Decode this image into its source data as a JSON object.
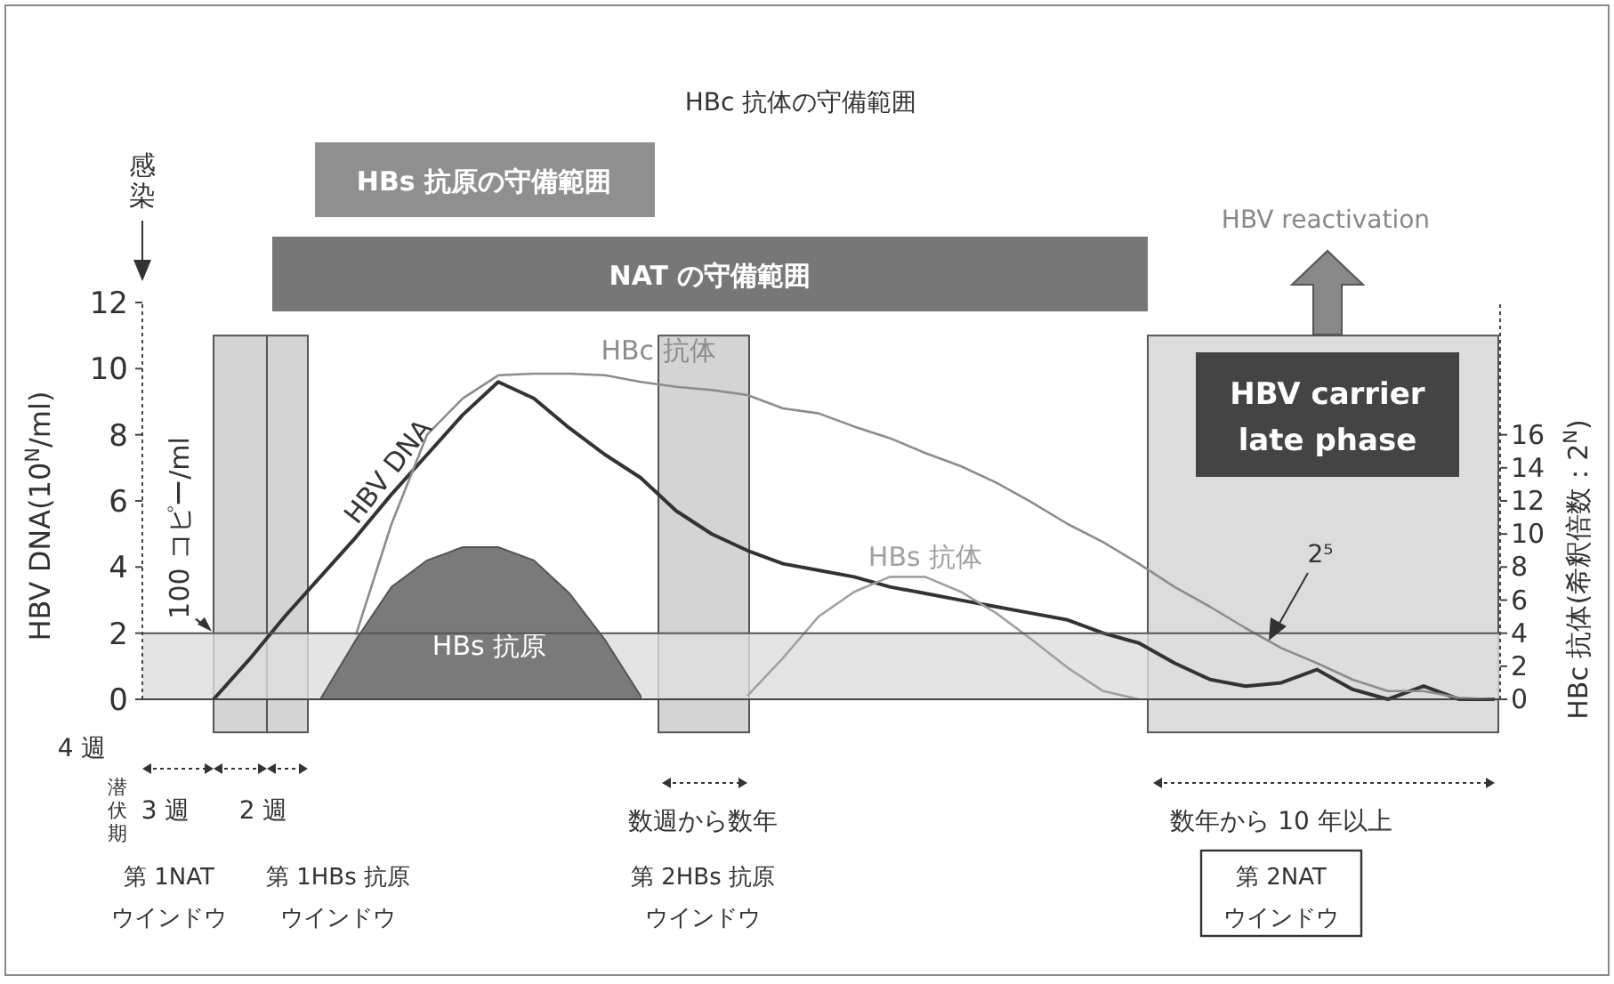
{
  "chart_data": {
    "type": "line",
    "ylabel": "HBV DNA(10$^{N}$/ml)",
    "y2label": "HBc 抗体(希釈倍数：2$^{N}$)",
    "categories": [
      null,
      null,
      null,
      null,
      null,
      null,
      null,
      null,
      null,
      null,
      null,
      null,
      null,
      null,
      null,
      null,
      null,
      null,
      null,
      null,
      null,
      null,
      null,
      null,
      null,
      null,
      null,
      null,
      null,
      null,
      null,
      null,
      null,
      null,
      null,
      null,
      null,
      null,
      null
    ],
    "ylim": [
      0,
      12
    ],
    "yticks": [
      0,
      2,
      4,
      6,
      8,
      10,
      12
    ],
    "y2lim": [
      0,
      24
    ],
    "y2ticks": [
      0,
      2,
      4,
      6,
      8,
      10,
      12,
      14,
      16
    ],
    "series": [
      {
        "name": "HBs 抗原",
        "type": "area",
        "color": "#7a7a7a",
        "values": [
          null,
          null,
          null,
          null,
          null,
          0,
          1.8,
          3.4,
          4.2,
          4.6,
          4.6,
          4.2,
          3.2,
          1.8,
          0.1,
          null,
          null,
          null,
          null,
          null,
          null,
          null,
          null,
          null,
          null,
          null,
          null,
          null,
          null,
          null,
          null,
          null,
          null,
          null,
          null,
          null,
          null,
          null,
          null
        ]
      },
      {
        "name": "HBV DNA",
        "color": "#333333",
        "values": [
          null,
          null,
          0,
          1.2,
          2.5,
          3.7,
          4.9,
          6.2,
          7.4,
          8.6,
          9.6,
          9.1,
          8.2,
          7.4,
          6.7,
          5.7,
          5.0,
          4.5,
          4.1,
          3.9,
          3.7,
          3.4,
          3.2,
          3.0,
          2.8,
          2.6,
          2.4,
          2.0,
          1.7,
          1.1,
          0.6,
          0.4,
          0.5,
          0.9,
          0.3,
          0,
          0.4,
          0,
          0
        ]
      },
      {
        "name": "HBc 抗体",
        "axis": "y2",
        "color": "#8c8c8c",
        "values": [
          null,
          null,
          null,
          null,
          null,
          null,
          3.9,
          10.6,
          16.0,
          18.2,
          19.6,
          19.7,
          19.7,
          19.6,
          19.2,
          18.9,
          18.7,
          18.4,
          17.6,
          17.3,
          16.5,
          15.8,
          14.9,
          14.1,
          13.1,
          11.9,
          10.6,
          9.5,
          8.2,
          6.8,
          5.6,
          4.3,
          3.1,
          2.2,
          1.2,
          0.5,
          0.5,
          0.1,
          0
        ]
      },
      {
        "name": "HBs 抗体",
        "axis": "y2",
        "color": "#a0a0a0",
        "values": [
          null,
          null,
          null,
          null,
          null,
          null,
          null,
          null,
          null,
          null,
          null,
          null,
          null,
          null,
          null,
          null,
          null,
          0.2,
          2.5,
          5.0,
          6.5,
          7.4,
          7.4,
          6.5,
          5.2,
          3.6,
          1.9,
          0.5,
          0,
          null,
          null,
          null,
          null,
          null,
          null,
          null,
          null,
          null,
          null
        ]
      }
    ],
    "ref_lines": [
      {
        "axis": "y",
        "value": 2,
        "label": "100 コピー/ml",
        "color": "#555555"
      }
    ],
    "bands": [
      {
        "axis": "y",
        "from": 0,
        "to": 2,
        "color": "#dddddd"
      }
    ],
    "annotations": [
      "HBc 抗体の守備範囲",
      "HBs 抗原の守備範囲",
      "NAT の守備範囲",
      "HBV reactivation",
      "HBV carrier late phase",
      "感染",
      "2⁵",
      "4 週",
      "潜伏期",
      "3 週",
      "2 週",
      "数週から数年",
      "数年から 10 年以上",
      "第 1NAT",
      "ウインドウ",
      "第 1HBs 抗原",
      "ウインドウ",
      "第 2HBs 抗原",
      "ウインドウ",
      "第 2NAT",
      "ウインドウ"
    ],
    "legend": false,
    "grid": false
  }
}
